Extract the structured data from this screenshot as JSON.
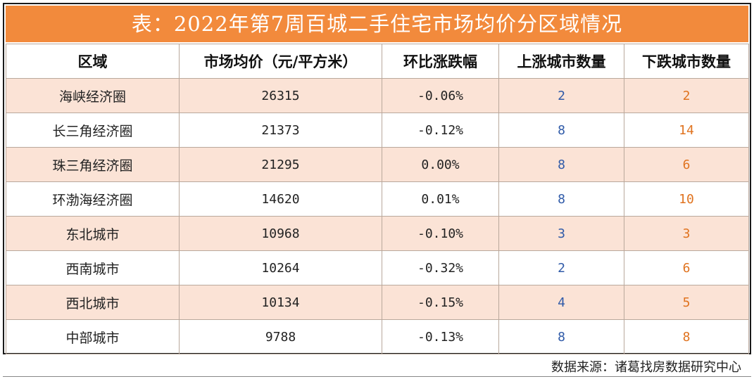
{
  "title": "表：2022年第7周百城二手住宅市场均价分区域情况",
  "headers": [
    "区域",
    "市场均价（元/平方米）",
    "环比涨跌幅",
    "上涨城市数量",
    "下跌城市数量"
  ],
  "rows": [
    {
      "region": "海峡经济圈",
      "price": "26315",
      "change": "-0.06%",
      "up": "2",
      "down": "2"
    },
    {
      "region": "长三角经济圈",
      "price": "21373",
      "change": "-0.12%",
      "up": "8",
      "down": "14"
    },
    {
      "region": "珠三角经济圈",
      "price": "21295",
      "change": "0.00%",
      "up": "8",
      "down": "6"
    },
    {
      "region": "环渤海经济圈",
      "price": "14620",
      "change": "0.01%",
      "up": "8",
      "down": "10"
    },
    {
      "region": "东北城市",
      "price": "10968",
      "change": "-0.10%",
      "up": "3",
      "down": "3"
    },
    {
      "region": "西南城市",
      "price": "10264",
      "change": "-0.32%",
      "up": "2",
      "down": "6"
    },
    {
      "region": "西北城市",
      "price": "10134",
      "change": "-0.15%",
      "up": "4",
      "down": "5"
    },
    {
      "region": "中部城市",
      "price": "9788",
      "change": "-0.13%",
      "up": "8",
      "down": "8"
    }
  ],
  "source": "数据来源：诸葛找房数据研究中心",
  "colors": {
    "title_bg": "#f28a3c",
    "row_shade": "#fbe3d6",
    "up_text": "#2f5aa8",
    "down_text": "#e0731f"
  }
}
